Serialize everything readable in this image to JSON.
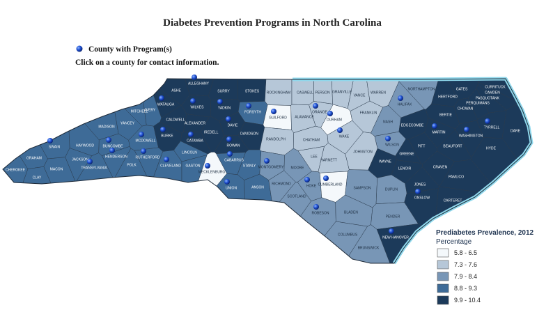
{
  "title": "Diabetes Prevention Programs in North Carolina",
  "legend_program": "County with Program(s)",
  "instruction": "Click on a county for contact information.",
  "choropleth": {
    "title": "Prediabetes Prevalence, 2012",
    "subtitle": "Percentage",
    "bins": [
      {
        "label": "5.8 - 6.5",
        "color": "#f4f8fb"
      },
      {
        "label": "7.3 - 7.6",
        "color": "#b6c7d8"
      },
      {
        "label": "7.9 - 8.4",
        "color": "#7896b6"
      },
      {
        "label": "8.8 - 9.3",
        "color": "#3e6b97"
      },
      {
        "label": "9.9 - 10.4",
        "color": "#1c3a5a"
      }
    ]
  },
  "counties": [
    {
      "name": "ALLEGHANY",
      "bin": 4,
      "program": true
    },
    {
      "name": "ASHE",
      "bin": 4
    },
    {
      "name": "SURRY",
      "bin": 4
    },
    {
      "name": "STOKES",
      "bin": 4
    },
    {
      "name": "ROCKINGHAM",
      "bin": 1
    },
    {
      "name": "CASWELL",
      "bin": 1
    },
    {
      "name": "PERSON",
      "bin": 1
    },
    {
      "name": "GRANVILLE",
      "bin": 1
    },
    {
      "name": "VANCE",
      "bin": 1
    },
    {
      "name": "WARREN",
      "bin": 1
    },
    {
      "name": "NORTHAMPTON",
      "bin": 2
    },
    {
      "name": "HERTFORD",
      "bin": 4
    },
    {
      "name": "GATES",
      "bin": 4
    },
    {
      "name": "CURRITUCK",
      "bin": 4
    },
    {
      "name": "CAMDEN",
      "bin": 4
    },
    {
      "name": "PASQUOTANK",
      "bin": 4
    },
    {
      "name": "PERQUIMANS",
      "bin": 4
    },
    {
      "name": "CHOWAN",
      "bin": 4
    },
    {
      "name": "HALIFAX",
      "bin": 2,
      "program": true
    },
    {
      "name": "WATAUGA",
      "bin": 4,
      "program": true
    },
    {
      "name": "WILKES",
      "bin": 4,
      "program": true
    },
    {
      "name": "YADKIN",
      "bin": 4,
      "program": true
    },
    {
      "name": "FORSYTH",
      "bin": 3,
      "program": true
    },
    {
      "name": "GUILFORD",
      "bin": 0,
      "program": true
    },
    {
      "name": "ALAMANCE",
      "bin": 1
    },
    {
      "name": "ORANGE",
      "bin": 1,
      "program": true
    },
    {
      "name": "DURHAM",
      "bin": 0,
      "program": true
    },
    {
      "name": "FRANKLIN",
      "bin": 1
    },
    {
      "name": "MITCHELL",
      "bin": 3
    },
    {
      "name": "AVERY",
      "bin": 3
    },
    {
      "name": "MADISON",
      "bin": 3
    },
    {
      "name": "YANCEY",
      "bin": 3
    },
    {
      "name": "CALDWELL",
      "bin": 4
    },
    {
      "name": "ALEXANDER",
      "bin": 4
    },
    {
      "name": "DAVIE",
      "bin": 4,
      "program": true
    },
    {
      "name": "DAVIDSON",
      "bin": 4
    },
    {
      "name": "NASH",
      "bin": 2
    },
    {
      "name": "EDGECOMBE",
      "bin": 4
    },
    {
      "name": "BERTIE",
      "bin": 4
    },
    {
      "name": "MARTIN",
      "bin": 4,
      "program": true
    },
    {
      "name": "WASHINGTON",
      "bin": 4,
      "program": true
    },
    {
      "name": "TYRRELL",
      "bin": 4,
      "program": true
    },
    {
      "name": "DARE",
      "bin": 4
    },
    {
      "name": "BUNCOMBE",
      "bin": 3,
      "program": true
    },
    {
      "name": "MCDOWELL",
      "bin": 3,
      "program": true
    },
    {
      "name": "BURKE",
      "bin": 4,
      "program": true
    },
    {
      "name": "CATAWBA",
      "bin": 4,
      "program": true
    },
    {
      "name": "IREDELL",
      "bin": 4
    },
    {
      "name": "ROWAN",
      "bin": 4,
      "program": true
    },
    {
      "name": "RANDOLPH",
      "bin": 1
    },
    {
      "name": "CHATHAM",
      "bin": 1
    },
    {
      "name": "WAKE",
      "bin": 1,
      "program": true
    },
    {
      "name": "WILSON",
      "bin": 2,
      "program": true
    },
    {
      "name": "PITT",
      "bin": 4
    },
    {
      "name": "BEAUFORT",
      "bin": 4
    },
    {
      "name": "HYDE",
      "bin": 4
    },
    {
      "name": "HAYWOOD",
      "bin": 3
    },
    {
      "name": "SWAIN",
      "bin": 3,
      "program": true
    },
    {
      "name": "GRAHAM",
      "bin": 3
    },
    {
      "name": "JACKSON",
      "bin": 3
    },
    {
      "name": "HENDERSON",
      "bin": 3,
      "program": true
    },
    {
      "name": "RUTHERFORD",
      "bin": 3,
      "program": true
    },
    {
      "name": "LINCOLN",
      "bin": 3
    },
    {
      "name": "LEE",
      "bin": 1
    },
    {
      "name": "JOHNSTON",
      "bin": 1
    },
    {
      "name": "GREENE",
      "bin": 4
    },
    {
      "name": "CRAVEN",
      "bin": 4
    },
    {
      "name": "PAMLICO",
      "bin": 4
    },
    {
      "name": "CHEROKEE",
      "bin": 3
    },
    {
      "name": "MACON",
      "bin": 3
    },
    {
      "name": "TRANSYLVANIA",
      "bin": 3,
      "program": true
    },
    {
      "name": "POLK",
      "bin": 3
    },
    {
      "name": "CLEVELAND",
      "bin": 3,
      "program": true
    },
    {
      "name": "GASTON",
      "bin": 3
    },
    {
      "name": "CABARRUS",
      "bin": 3,
      "program": true
    },
    {
      "name": "STANLY",
      "bin": 3
    },
    {
      "name": "MONTGOMERY",
      "bin": 2,
      "program": true
    },
    {
      "name": "MOORE",
      "bin": 2
    },
    {
      "name": "HARNETT",
      "bin": 1
    },
    {
      "name": "WAYNE",
      "bin": 4
    },
    {
      "name": "LENOIR",
      "bin": 4
    },
    {
      "name": "JONES",
      "bin": 4
    },
    {
      "name": "CLAY",
      "bin": 3
    },
    {
      "name": "MECKLENBURG",
      "bin": 0,
      "program": true
    },
    {
      "name": "UNION",
      "bin": 3,
      "program": true
    },
    {
      "name": "ANSON",
      "bin": 3
    },
    {
      "name": "RICHMOND",
      "bin": 2
    },
    {
      "name": "HOKE",
      "bin": 2,
      "program": true
    },
    {
      "name": "CUMBERLAND",
      "bin": 0,
      "program": true
    },
    {
      "name": "SAMPSON",
      "bin": 2
    },
    {
      "name": "DUPLIN",
      "bin": 2
    },
    {
      "name": "ONSLOW",
      "bin": 4,
      "program": true
    },
    {
      "name": "CARTERET",
      "bin": 4
    },
    {
      "name": "SCOTLAND",
      "bin": 2
    },
    {
      "name": "ROBESON",
      "bin": 2,
      "program": true
    },
    {
      "name": "BLADEN",
      "bin": 2
    },
    {
      "name": "PENDER",
      "bin": 2
    },
    {
      "name": "NEW HANOVER",
      "bin": 4,
      "program": true
    },
    {
      "name": "COLUMBUS",
      "bin": 2
    },
    {
      "name": "BRUNSWICK",
      "bin": 2
    }
  ]
}
